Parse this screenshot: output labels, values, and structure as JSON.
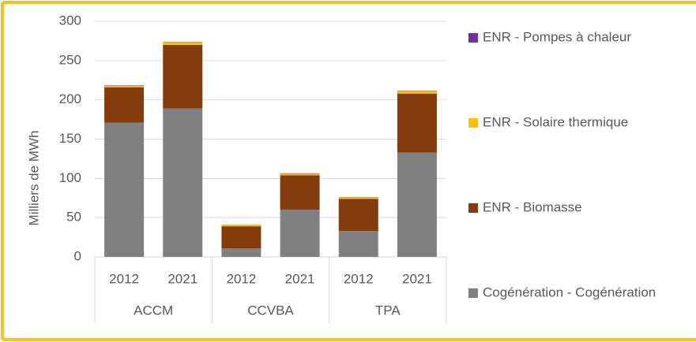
{
  "chart_data": {
    "type": "stacked_bar",
    "y_label": "Milliers  de MWh",
    "categories": [
      "2012",
      "2021",
      "2012",
      "2021",
      "2012",
      "2021"
    ],
    "groups": [
      "ACCM",
      "CCVBA",
      "TPA"
    ],
    "series": [
      {
        "name": "Cogénération - Cogénération",
        "color": "#808080",
        "values": [
          171,
          189,
          11,
          60,
          33,
          133
        ]
      },
      {
        "name": "ENR - Biomasse",
        "color": "#843c0c",
        "values": [
          45,
          81,
          28,
          44,
          41,
          75
        ]
      },
      {
        "name": "ENR - Solaire thermique",
        "color": "#ffc000",
        "values": [
          2,
          3,
          1.5,
          2,
          2,
          3
        ]
      },
      {
        "name": "ENR - Pompes à chaleur",
        "color": "#7030a0",
        "values": [
          0.5,
          0.5,
          0.3,
          0.5,
          0.3,
          0.5
        ]
      }
    ],
    "ylim": [
      0,
      300
    ],
    "yticks": [
      0,
      50,
      100,
      150,
      200,
      250,
      300
    ],
    "grid": true
  }
}
